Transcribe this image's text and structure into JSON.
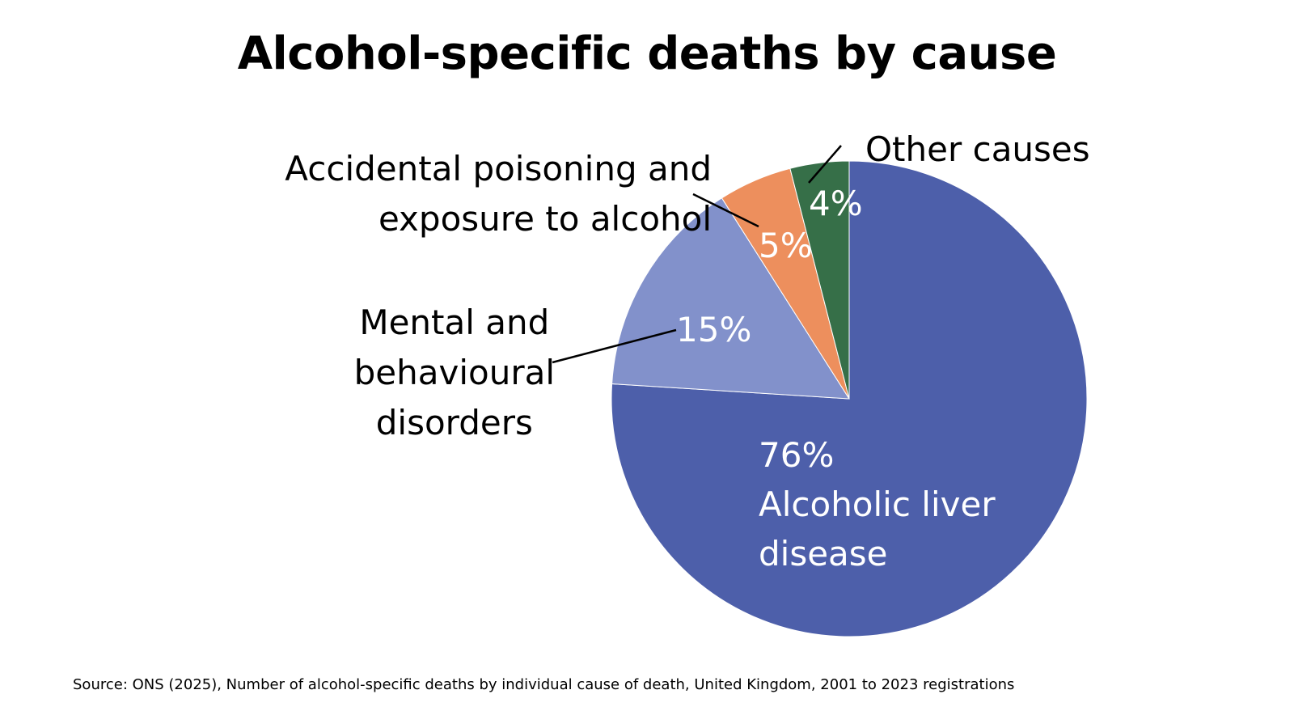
{
  "chart_data": {
    "type": "pie",
    "title": "Alcohol-specific deaths by cause",
    "slices": [
      {
        "name": "Alcoholic liver disease",
        "value": 76,
        "label": "76%",
        "color": "#4d5faa",
        "label_color": "#ffffff"
      },
      {
        "name": "Mental and behavioural disorders",
        "value": 15,
        "label": "15%",
        "color": "#8291cb",
        "label_color": "#ffffff"
      },
      {
        "name": "Accidental poisoning and exposure to alcohol",
        "value": 5,
        "label": "5%",
        "color": "#ed8f5d",
        "label_color": "#ffffff"
      },
      {
        "name": "Other causes",
        "value": 4,
        "label": "4%",
        "color": "#366f48",
        "label_color": "#ffffff"
      }
    ],
    "start_angle": "12 o'clock",
    "direction": "clockwise",
    "legend": "none"
  },
  "labels": {
    "liver_pct": "76%",
    "liver_name_line1": "Alcoholic liver",
    "liver_name_line2": "disease",
    "mental_pct": "15%",
    "mental_line1": "Mental and",
    "mental_line2": "behavioural",
    "mental_line3": "disorders",
    "accidental_pct": "5%",
    "accidental_line1": "Accidental poisoning and",
    "accidental_line2": "exposure to alcohol",
    "other_pct": "4%",
    "other_name": "Other causes"
  },
  "source": "Source: ONS (2025), Number of alcohol-specific deaths by individual cause of death, United Kingdom, 2001 to 2023 registrations"
}
